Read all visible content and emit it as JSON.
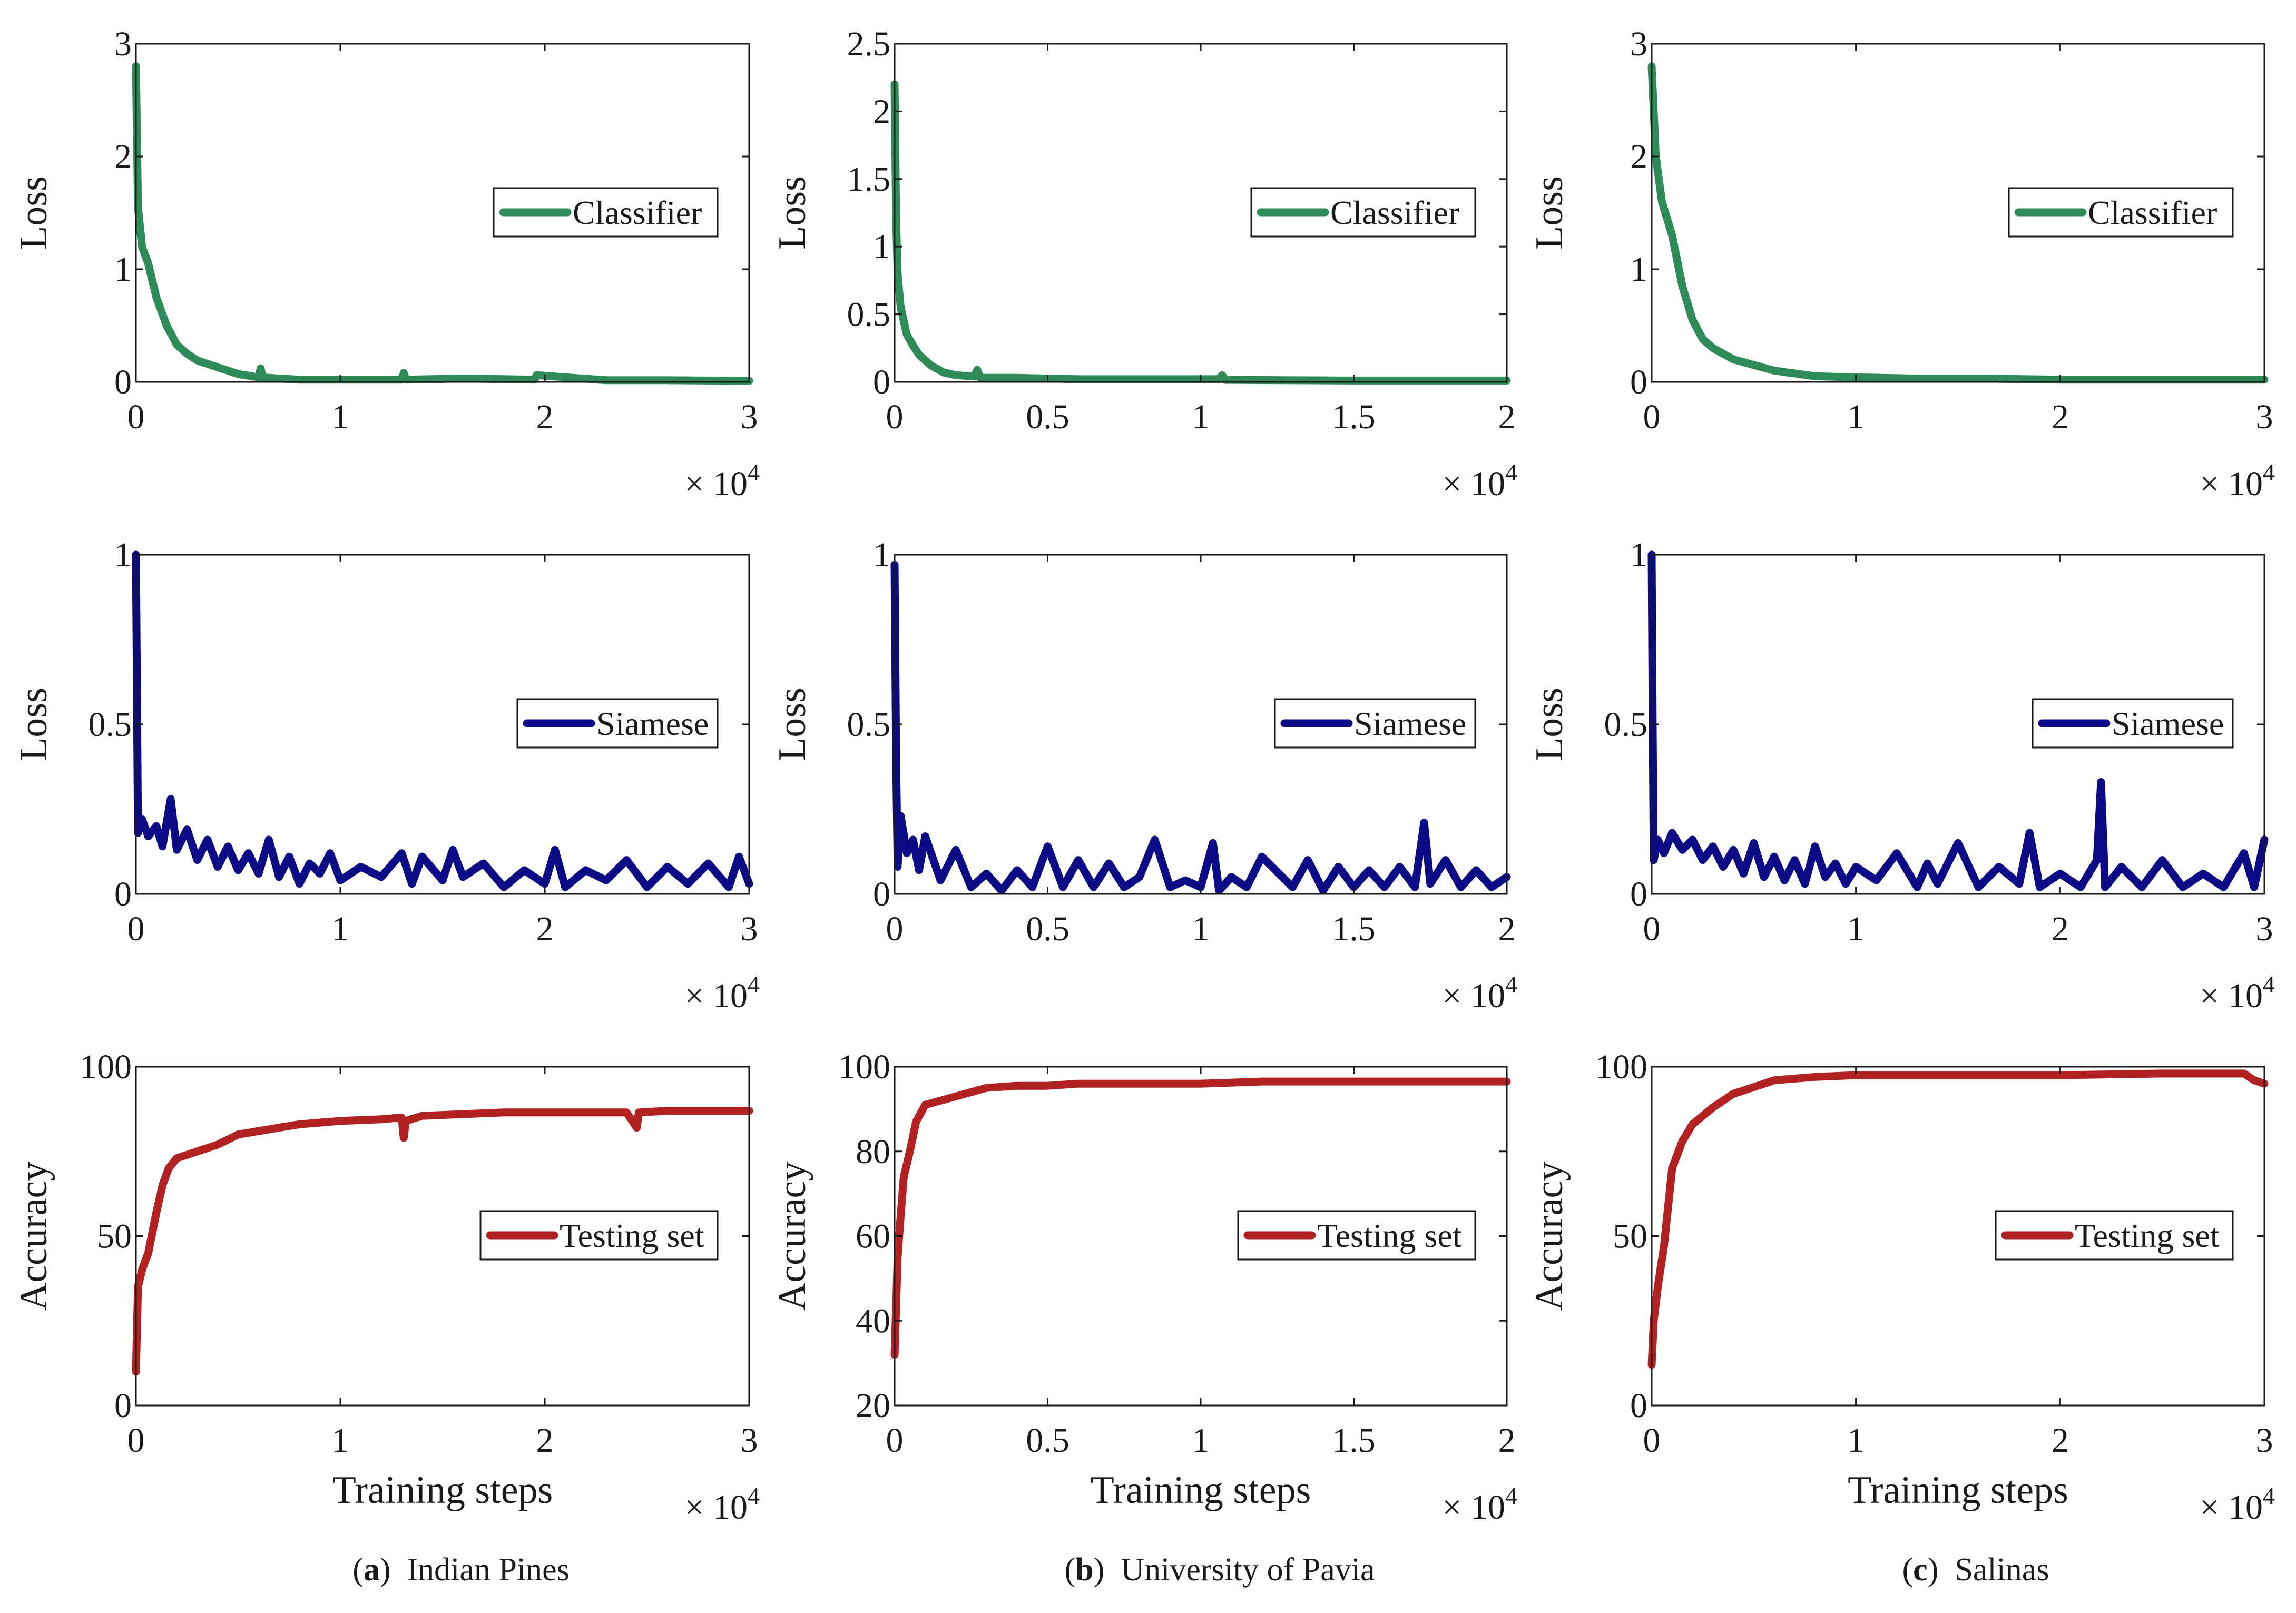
{
  "colors": {
    "classifier": "#2e8b57",
    "siamese": "#0b0b85",
    "testing": "#b22222",
    "axis": "#1a1a1a"
  },
  "captions": [
    {
      "letter": "a",
      "text": "Indian Pines"
    },
    {
      "letter": "b",
      "text": "University of Pavia"
    },
    {
      "letter": "c",
      "text": "Salinas"
    }
  ],
  "chart_data": [
    {
      "id": "a-classifier",
      "type": "line",
      "column": 0,
      "row": 0,
      "ylabel": "Loss",
      "xlabel": "",
      "xlim": [
        0,
        3
      ],
      "ylim": [
        0,
        3
      ],
      "xticks": [
        "0",
        "1",
        "2",
        "3"
      ],
      "yticks": [
        "0",
        "1",
        "2",
        "3"
      ],
      "xticks_values": [
        0,
        1,
        2,
        3
      ],
      "yticks_values": [
        0,
        1,
        2,
        3
      ],
      "multiplier": "× 10",
      "multiplier_exp": "4",
      "legend": "Classifier",
      "legend_position": "center-right",
      "color_key": "classifier",
      "series": [
        {
          "name": "Classifier",
          "x": [
            0,
            0.01,
            0.03,
            0.06,
            0.1,
            0.15,
            0.2,
            0.25,
            0.3,
            0.4,
            0.5,
            0.6,
            0.61,
            0.62,
            0.7,
            0.8,
            1.0,
            1.3,
            1.31,
            1.32,
            1.6,
            1.95,
            1.96,
            2.3,
            2.6,
            3.0
          ],
          "y": [
            2.8,
            1.55,
            1.2,
            1.05,
            0.75,
            0.5,
            0.33,
            0.25,
            0.19,
            0.13,
            0.07,
            0.04,
            0.12,
            0.04,
            0.03,
            0.02,
            0.02,
            0.02,
            0.08,
            0.02,
            0.03,
            0.02,
            0.06,
            0.015,
            0.015,
            0.01
          ]
        }
      ]
    },
    {
      "id": "b-classifier",
      "type": "line",
      "column": 1,
      "row": 0,
      "ylabel": "Loss",
      "xlabel": "",
      "xlim": [
        0,
        2
      ],
      "ylim": [
        0,
        2.5
      ],
      "xticks": [
        "0",
        "0.5",
        "1",
        "1.5",
        "2"
      ],
      "yticks": [
        "0",
        "0.5",
        "1",
        "1.5",
        "2",
        "2.5"
      ],
      "xticks_values": [
        0,
        0.5,
        1,
        1.5,
        2
      ],
      "yticks_values": [
        0,
        0.5,
        1,
        1.5,
        2,
        2.5
      ],
      "multiplier": "× 10",
      "multiplier_exp": "4",
      "legend": "Classifier",
      "legend_position": "center-right",
      "color_key": "classifier",
      "series": [
        {
          "name": "Classifier",
          "x": [
            0,
            0.005,
            0.01,
            0.02,
            0.04,
            0.06,
            0.08,
            0.12,
            0.16,
            0.2,
            0.26,
            0.27,
            0.28,
            0.4,
            0.6,
            1.06,
            1.07,
            1.08,
            1.5,
            2.0
          ],
          "y": [
            2.2,
            1.2,
            0.8,
            0.55,
            0.35,
            0.27,
            0.2,
            0.12,
            0.07,
            0.05,
            0.04,
            0.09,
            0.03,
            0.03,
            0.02,
            0.02,
            0.05,
            0.015,
            0.01,
            0.01
          ]
        }
      ]
    },
    {
      "id": "c-classifier",
      "type": "line",
      "column": 2,
      "row": 0,
      "ylabel": "Loss",
      "xlabel": "",
      "xlim": [
        0,
        3
      ],
      "ylim": [
        0,
        3
      ],
      "xticks": [
        "0",
        "1",
        "2",
        "3"
      ],
      "yticks": [
        "0",
        "1",
        "2",
        "3"
      ],
      "xticks_values": [
        0,
        1,
        2,
        3
      ],
      "yticks_values": [
        0,
        1,
        2,
        3
      ],
      "multiplier": "× 10",
      "multiplier_exp": "4",
      "legend": "Classifier",
      "legend_position": "center-right",
      "color_key": "classifier",
      "series": [
        {
          "name": "Classifier",
          "x": [
            0,
            0.02,
            0.05,
            0.1,
            0.15,
            0.2,
            0.25,
            0.3,
            0.4,
            0.5,
            0.6,
            0.8,
            1.0,
            1.3,
            1.6,
            2.0,
            2.5,
            3.0
          ],
          "y": [
            2.8,
            2.0,
            1.6,
            1.3,
            0.85,
            0.55,
            0.38,
            0.3,
            0.2,
            0.15,
            0.1,
            0.05,
            0.04,
            0.03,
            0.03,
            0.02,
            0.02,
            0.02
          ]
        }
      ]
    },
    {
      "id": "a-siamese",
      "type": "line",
      "column": 0,
      "row": 1,
      "ylabel": "Loss",
      "xlabel": "",
      "xlim": [
        0,
        3
      ],
      "ylim": [
        0,
        1
      ],
      "xticks": [
        "0",
        "1",
        "2",
        "3"
      ],
      "yticks": [
        "0",
        "0.5",
        "1"
      ],
      "xticks_values": [
        0,
        1,
        2,
        3
      ],
      "yticks_values": [
        0,
        0.5,
        1
      ],
      "multiplier": "× 10",
      "multiplier_exp": "4",
      "legend": "Siamese",
      "legend_position": "center-right",
      "color_key": "siamese",
      "series": [
        {
          "name": "Siamese",
          "x": [
            0,
            0.005,
            0.01,
            0.03,
            0.06,
            0.1,
            0.13,
            0.17,
            0.2,
            0.25,
            0.3,
            0.35,
            0.4,
            0.45,
            0.5,
            0.55,
            0.6,
            0.65,
            0.7,
            0.75,
            0.8,
            0.85,
            0.9,
            0.95,
            1.0,
            1.1,
            1.2,
            1.3,
            1.35,
            1.4,
            1.5,
            1.55,
            1.6,
            1.7,
            1.8,
            1.9,
            2.0,
            2.05,
            2.1,
            2.2,
            2.3,
            2.4,
            2.5,
            2.6,
            2.7,
            2.8,
            2.9,
            2.95,
            3.0
          ],
          "y": [
            1.0,
            0.6,
            0.18,
            0.22,
            0.17,
            0.2,
            0.14,
            0.28,
            0.13,
            0.19,
            0.1,
            0.16,
            0.08,
            0.14,
            0.07,
            0.12,
            0.06,
            0.16,
            0.05,
            0.11,
            0.03,
            0.09,
            0.06,
            0.12,
            0.04,
            0.08,
            0.05,
            0.12,
            0.03,
            0.11,
            0.04,
            0.13,
            0.05,
            0.09,
            0.02,
            0.07,
            0.03,
            0.13,
            0.02,
            0.07,
            0.04,
            0.1,
            0.02,
            0.08,
            0.03,
            0.09,
            0.02,
            0.11,
            0.03
          ]
        }
      ]
    },
    {
      "id": "b-siamese",
      "type": "line",
      "column": 1,
      "row": 1,
      "ylabel": "Loss",
      "xlabel": "",
      "xlim": [
        0,
        2
      ],
      "ylim": [
        0,
        1
      ],
      "xticks": [
        "0",
        "0.5",
        "1",
        "1.5",
        "2"
      ],
      "yticks": [
        "0",
        "0.5",
        "1"
      ],
      "xticks_values": [
        0,
        0.5,
        1,
        1.5,
        2
      ],
      "yticks_values": [
        0,
        0.5,
        1
      ],
      "multiplier": "× 10",
      "multiplier_exp": "4",
      "legend": "Siamese",
      "legend_position": "center-right",
      "color_key": "siamese",
      "series": [
        {
          "name": "Siamese",
          "x": [
            0,
            0.005,
            0.01,
            0.02,
            0.04,
            0.06,
            0.08,
            0.1,
            0.15,
            0.2,
            0.25,
            0.3,
            0.35,
            0.4,
            0.45,
            0.5,
            0.55,
            0.6,
            0.65,
            0.7,
            0.75,
            0.8,
            0.85,
            0.9,
            0.95,
            1.0,
            1.04,
            1.06,
            1.1,
            1.15,
            1.2,
            1.3,
            1.35,
            1.4,
            1.45,
            1.5,
            1.55,
            1.6,
            1.65,
            1.7,
            1.73,
            1.75,
            1.8,
            1.85,
            1.9,
            1.95,
            2.0
          ],
          "y": [
            0.97,
            0.4,
            0.08,
            0.23,
            0.12,
            0.16,
            0.07,
            0.17,
            0.04,
            0.13,
            0.02,
            0.06,
            0.01,
            0.07,
            0.02,
            0.14,
            0.02,
            0.1,
            0.02,
            0.09,
            0.02,
            0.05,
            0.16,
            0.02,
            0.04,
            0.02,
            0.15,
            0.01,
            0.05,
            0.02,
            0.11,
            0.02,
            0.1,
            0.01,
            0.08,
            0.02,
            0.07,
            0.02,
            0.08,
            0.02,
            0.21,
            0.03,
            0.1,
            0.02,
            0.07,
            0.02,
            0.05
          ]
        }
      ]
    },
    {
      "id": "c-siamese",
      "type": "line",
      "column": 2,
      "row": 1,
      "ylabel": "Loss",
      "xlabel": "",
      "xlim": [
        0,
        3
      ],
      "ylim": [
        0,
        1
      ],
      "xticks": [
        "0",
        "1",
        "2",
        "3"
      ],
      "yticks": [
        "0",
        "0.5",
        "1"
      ],
      "xticks_values": [
        0,
        1,
        2,
        3
      ],
      "yticks_values": [
        0,
        0.5,
        1
      ],
      "multiplier": "× 10",
      "multiplier_exp": "4",
      "legend": "Siamese",
      "legend_position": "center-right",
      "color_key": "siamese",
      "series": [
        {
          "name": "Siamese",
          "x": [
            0,
            0.005,
            0.01,
            0.03,
            0.06,
            0.1,
            0.15,
            0.2,
            0.25,
            0.3,
            0.35,
            0.4,
            0.45,
            0.5,
            0.55,
            0.6,
            0.65,
            0.7,
            0.75,
            0.8,
            0.85,
            0.9,
            0.95,
            1.0,
            1.1,
            1.2,
            1.3,
            1.35,
            1.4,
            1.5,
            1.6,
            1.7,
            1.8,
            1.85,
            1.9,
            2.0,
            2.1,
            2.18,
            2.2,
            2.22,
            2.3,
            2.4,
            2.5,
            2.6,
            2.7,
            2.8,
            2.9,
            2.95,
            3.0
          ],
          "y": [
            1.0,
            0.5,
            0.1,
            0.16,
            0.12,
            0.18,
            0.13,
            0.16,
            0.1,
            0.14,
            0.08,
            0.13,
            0.06,
            0.15,
            0.05,
            0.11,
            0.04,
            0.1,
            0.03,
            0.14,
            0.05,
            0.09,
            0.03,
            0.08,
            0.04,
            0.12,
            0.02,
            0.09,
            0.03,
            0.15,
            0.02,
            0.08,
            0.03,
            0.18,
            0.02,
            0.06,
            0.02,
            0.1,
            0.33,
            0.02,
            0.08,
            0.02,
            0.1,
            0.02,
            0.06,
            0.02,
            0.12,
            0.02,
            0.16
          ]
        }
      ]
    },
    {
      "id": "a-accuracy",
      "type": "line",
      "column": 0,
      "row": 2,
      "ylabel": "Accuracy",
      "xlabel": "Training steps",
      "xlim": [
        0,
        3
      ],
      "ylim": [
        0,
        100
      ],
      "xticks": [
        "0",
        "1",
        "2",
        "3"
      ],
      "yticks": [
        "0",
        "50",
        "100"
      ],
      "xticks_values": [
        0,
        1,
        2,
        3
      ],
      "yticks_values": [
        0,
        50,
        100
      ],
      "multiplier": "× 10",
      "multiplier_exp": "4",
      "legend": "Testing set",
      "legend_position": "center-right",
      "color_key": "testing",
      "series": [
        {
          "name": "Testing set",
          "x": [
            0,
            0.01,
            0.03,
            0.06,
            0.1,
            0.13,
            0.16,
            0.2,
            0.25,
            0.3,
            0.4,
            0.5,
            0.6,
            0.7,
            0.8,
            0.9,
            1.0,
            1.2,
            1.3,
            1.31,
            1.32,
            1.4,
            1.6,
            1.8,
            2.0,
            2.2,
            2.4,
            2.45,
            2.46,
            2.6,
            2.8,
            3.0
          ],
          "y": [
            10,
            35,
            40,
            45,
            57,
            65,
            70,
            73,
            74,
            75,
            77,
            80,
            81,
            82,
            83,
            83.5,
            84,
            84.5,
            85,
            79,
            84,
            85.5,
            86,
            86.5,
            86.5,
            86.5,
            86.5,
            82,
            86.5,
            87,
            87,
            87
          ]
        }
      ]
    },
    {
      "id": "b-accuracy",
      "type": "line",
      "column": 1,
      "row": 2,
      "ylabel": "Accuracy",
      "xlabel": "Training steps",
      "xlim": [
        0,
        2
      ],
      "ylim": [
        20,
        100
      ],
      "xticks": [
        "0",
        "0.5",
        "1",
        "1.5",
        "2"
      ],
      "yticks": [
        "20",
        "40",
        "60",
        "80",
        "100"
      ],
      "xticks_values": [
        0,
        0.5,
        1,
        1.5,
        2
      ],
      "yticks_values": [
        20,
        40,
        60,
        80,
        100
      ],
      "multiplier": "× 10",
      "multiplier_exp": "4",
      "legend": "Testing set",
      "legend_position": "center-right",
      "color_key": "testing",
      "series": [
        {
          "name": "Testing set",
          "x": [
            0,
            0.01,
            0.02,
            0.03,
            0.05,
            0.07,
            0.1,
            0.15,
            0.2,
            0.25,
            0.3,
            0.4,
            0.5,
            0.6,
            0.7,
            0.8,
            0.9,
            1.0,
            1.2,
            1.4,
            1.6,
            1.8,
            2.0
          ],
          "y": [
            32,
            55,
            65,
            74,
            80,
            87,
            91,
            92,
            93,
            94,
            95,
            95.5,
            95.5,
            96,
            96,
            96,
            96,
            96,
            96.5,
            96.5,
            96.5,
            96.5,
            96.5
          ]
        }
      ]
    },
    {
      "id": "c-accuracy",
      "type": "line",
      "column": 2,
      "row": 2,
      "ylabel": "Accuracy",
      "xlabel": "Training steps",
      "xlim": [
        0,
        3
      ],
      "ylim": [
        0,
        100
      ],
      "xticks": [
        "0",
        "1",
        "2",
        "3"
      ],
      "yticks": [
        "0",
        "50",
        "100"
      ],
      "xticks_values": [
        0,
        1,
        2,
        3
      ],
      "yticks_values": [
        0,
        50,
        100
      ],
      "multiplier": "× 10",
      "multiplier_exp": "4",
      "legend": "Testing set",
      "legend_position": "center-right",
      "color_key": "testing",
      "series": [
        {
          "name": "Testing set",
          "x": [
            0,
            0.01,
            0.03,
            0.06,
            0.1,
            0.15,
            0.2,
            0.3,
            0.4,
            0.5,
            0.6,
            0.8,
            1.0,
            1.5,
            2.0,
            2.5,
            2.9,
            2.95,
            3.0
          ],
          "y": [
            12,
            25,
            35,
            47,
            70,
            78,
            83,
            88,
            92,
            94,
            96,
            97,
            97.5,
            97.5,
            97.5,
            98,
            98,
            96,
            95
          ]
        }
      ]
    }
  ]
}
